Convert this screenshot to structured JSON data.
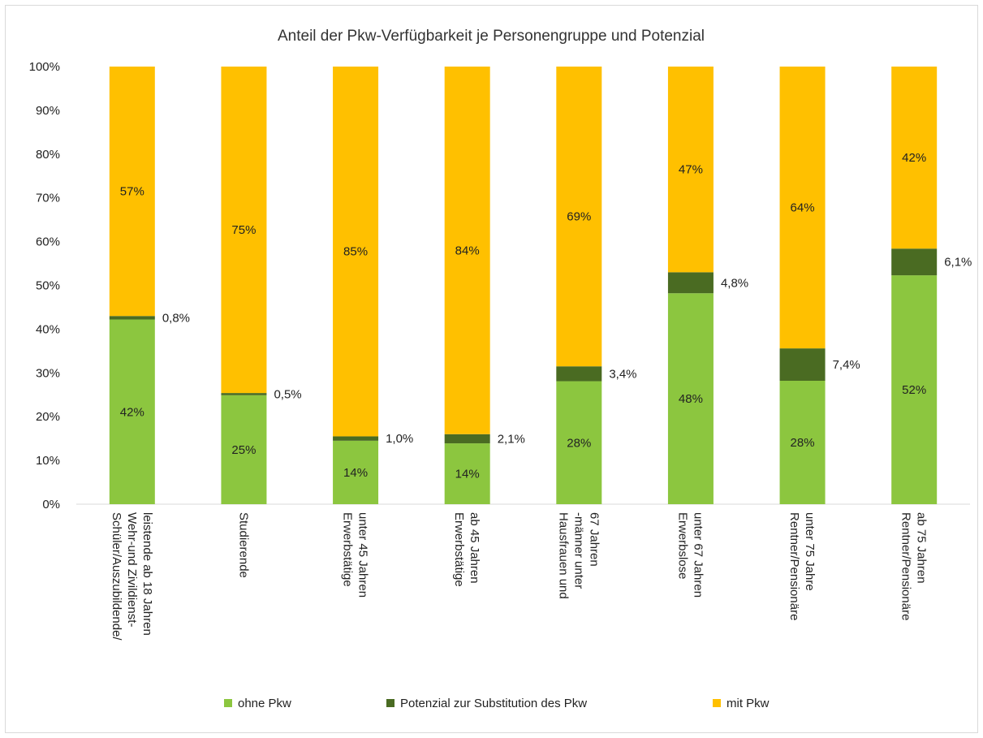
{
  "chart_data": {
    "type": "bar",
    "stacked": true,
    "title": "Anteil der Pkw-Verfügbarkeit je Personengruppe und Potenzial",
    "xlabel": "",
    "ylabel": "",
    "ylim": [
      0,
      100
    ],
    "yticks": [
      "0%",
      "10%",
      "20%",
      "30%",
      "40%",
      "50%",
      "60%",
      "70%",
      "80%",
      "90%",
      "100%"
    ],
    "grid": false,
    "legend_position": "bottom",
    "categories": [
      [
        "Schüler/Auszubildende/",
        "Wehr-und Zivildienst-",
        "leistende ab 18 Jahren"
      ],
      [
        "Studierende"
      ],
      [
        "Erwerbstätige",
        "unter 45 Jahren"
      ],
      [
        "Erwerbstätige",
        "ab 45 Jahren"
      ],
      [
        "Hausfrauen und",
        "-männer unter",
        "67 Jahren"
      ],
      [
        "Erwerbslose",
        "unter 67 Jahren"
      ],
      [
        "Rentner/Pensionäre",
        "unter 75 Jahre"
      ],
      [
        "Rentner/Pensionäre",
        "ab 75 Jahren"
      ]
    ],
    "series": [
      {
        "name": "ohne Pkw",
        "color": "#8cc63f",
        "values": [
          42.2,
          24.9,
          14.5,
          13.9,
          28.1,
          48.2,
          28.2,
          52.3
        ],
        "labels": [
          "42%",
          "25%",
          "14%",
          "14%",
          "28%",
          "48%",
          "28%",
          "52%"
        ]
      },
      {
        "name": "Potenzial zur Substitution des Pkw",
        "color": "#4a6b22",
        "values": [
          0.8,
          0.5,
          1.0,
          2.1,
          3.4,
          4.8,
          7.4,
          6.1
        ],
        "labels": [
          "0,8%",
          "0,5%",
          "1,0%",
          "2,1%",
          "3,4%",
          "4,8%",
          "7,4%",
          "6,1%"
        ]
      },
      {
        "name": "mit Pkw",
        "color": "#ffc000",
        "values": [
          57.0,
          74.6,
          84.5,
          84.0,
          68.5,
          47.0,
          64.4,
          41.6
        ],
        "labels": [
          "57%",
          "75%",
          "85%",
          "84%",
          "69%",
          "47%",
          "64%",
          "42%"
        ]
      }
    ]
  }
}
